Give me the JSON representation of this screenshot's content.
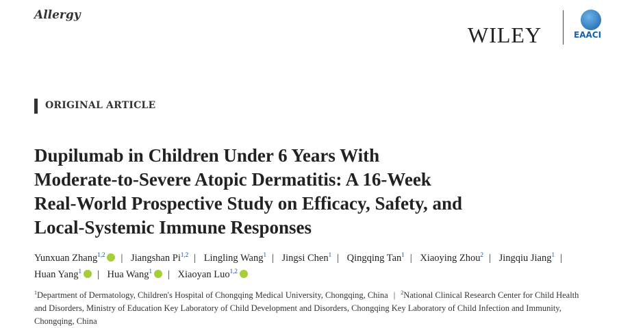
{
  "header": {
    "journal": "Allergy",
    "publisher": "WILEY",
    "society": "EAACI"
  },
  "section_label": "ORIGINAL ARTICLE",
  "title_lines": [
    "Dupilumab in Children Under 6 Years With",
    "Moderate-to-Severe Atopic Dermatitis: A 16-Week",
    "Real-World Prospective Study on Efficacy, Safety, and",
    "Local-Systemic Immune Responses"
  ],
  "separator": "|",
  "authors": [
    {
      "name": "Yunxuan Zhang",
      "sup": "1,2",
      "orcid": true
    },
    {
      "name": "Jiangshan Pi",
      "sup": "1,2",
      "orcid": false
    },
    {
      "name": "Lingling Wang",
      "sup": "1",
      "orcid": false
    },
    {
      "name": "Jingsi Chen",
      "sup": "1",
      "orcid": false
    },
    {
      "name": "Qingqing Tan",
      "sup": "1",
      "orcid": false
    },
    {
      "name": "Xiaoying Zhou",
      "sup": "2",
      "orcid": false
    },
    {
      "name": "Jingqiu Jiang",
      "sup": "1",
      "orcid": false
    },
    {
      "name": "Huan Yang",
      "sup": "1",
      "orcid": true
    },
    {
      "name": "Hua Wang",
      "sup": "1",
      "orcid": true
    },
    {
      "name": "Xiaoyan Luo",
      "sup": "1,2",
      "orcid": true
    }
  ],
  "affiliations": [
    {
      "sup": "1",
      "text": "Department of Dermatology, Children's Hospital of Chongqing Medical University, Chongqing, China"
    },
    {
      "sup": "2",
      "text": "National Clinical Research Center for Child Health and Disorders, Ministry of Education Key Laboratory of Child Development and Disorders, Chongqing Key Laboratory of Child Infection and Immunity, Chongqing, China"
    }
  ]
}
